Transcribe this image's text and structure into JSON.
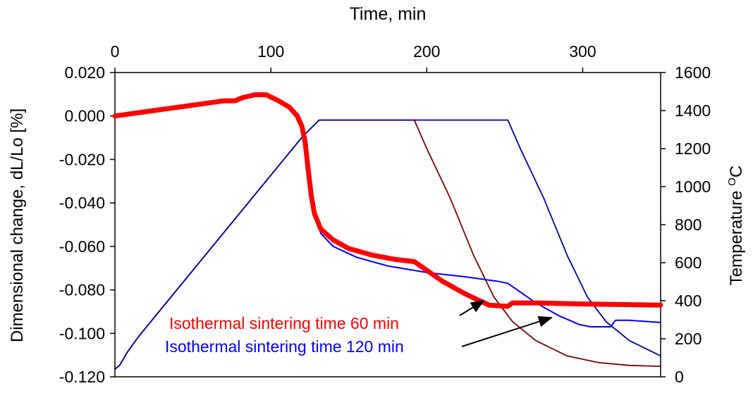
{
  "chart_data": {
    "type": "line",
    "xlabel": "Time, min",
    "ylabel": "Dimensional change, dL/Lo [%]",
    "y2label_main": "Temperature ",
    "y2label_sup": "O",
    "y2label_unit": "C",
    "xlim": [
      0,
      350
    ],
    "ylim": [
      -0.12,
      0.02
    ],
    "y2lim": [
      0,
      1600
    ],
    "x_ticks": [
      "0",
      "100",
      "200",
      "300"
    ],
    "x_tick_values": [
      0,
      100,
      200,
      300
    ],
    "y_ticks": [
      "0.020",
      "0.000",
      "-0.020",
      "-0.040",
      "-0.060",
      "-0.080",
      "-0.100",
      "-0.120"
    ],
    "y_tick_values": [
      0.02,
      0,
      -0.02,
      -0.04,
      -0.06,
      -0.08,
      -0.1,
      -0.12
    ],
    "y2_ticks": [
      "1600",
      "1400",
      "1200",
      "1000",
      "800",
      "600",
      "400",
      "200",
      "0"
    ],
    "y2_tick_values": [
      1600,
      1400,
      1200,
      1000,
      800,
      600,
      400,
      200,
      0
    ],
    "grid": false,
    "annotations": [
      {
        "text": "Isothermal sintering time 60 min",
        "color": "#ff0000"
      },
      {
        "text": "Isothermal sintering time 120 min",
        "color": "#0000ff"
      }
    ],
    "series": [
      {
        "axis": "left",
        "color": "#ff0000",
        "x": [
          0,
          20,
          40,
          60,
          70,
          77,
          82,
          90,
          97,
          105,
          112,
          117,
          120,
          122,
          124,
          126,
          128,
          132,
          140,
          150,
          165,
          180,
          192,
          200,
          210,
          225,
          240,
          250,
          252,
          255,
          270,
          300,
          350
        ],
        "y": [
          0,
          0.002,
          0.004,
          0.006,
          0.007,
          0.007,
          0.0085,
          0.0098,
          0.0098,
          0.007,
          0.004,
          0.0,
          -0.005,
          -0.012,
          -0.025,
          -0.037,
          -0.045,
          -0.052,
          -0.057,
          -0.061,
          -0.064,
          -0.066,
          -0.067,
          -0.071,
          -0.076,
          -0.082,
          -0.087,
          -0.0875,
          -0.0875,
          -0.086,
          -0.086,
          -0.0865,
          -0.087
        ]
      },
      {
        "axis": "left",
        "color": "#0000ff",
        "x": [
          0,
          20,
          40,
          60,
          70,
          77,
          82,
          90,
          97,
          105,
          112,
          117,
          120,
          122,
          124,
          126,
          128,
          132,
          140,
          155,
          175,
          200,
          225,
          245,
          252,
          258,
          270,
          285,
          298,
          305,
          318,
          321,
          330,
          350
        ],
        "y": [
          0,
          0.002,
          0.004,
          0.006,
          0.007,
          0.007,
          0.0085,
          0.0098,
          0.0098,
          0.0075,
          0.0045,
          0.0,
          -0.005,
          -0.012,
          -0.025,
          -0.037,
          -0.046,
          -0.054,
          -0.06,
          -0.065,
          -0.069,
          -0.072,
          -0.074,
          -0.076,
          -0.077,
          -0.08,
          -0.086,
          -0.092,
          -0.096,
          -0.097,
          -0.097,
          -0.094,
          -0.094,
          -0.095
        ]
      },
      {
        "axis": "right",
        "color": "#7b0000",
        "x": [
          0,
          3,
          8,
          15,
          30,
          60,
          90,
          120,
          131,
          192,
          200,
          215,
          230,
          243,
          255,
          270,
          290,
          310,
          330,
          350
        ],
        "y": [
          40,
          60,
          130,
          210,
          360,
          660,
          960,
          1260,
          1350,
          1350,
          1200,
          940,
          640,
          420,
          290,
          190,
          110,
          75,
          60,
          55
        ]
      },
      {
        "axis": "right",
        "color": "#000099",
        "x": [
          0,
          3,
          8,
          15,
          30,
          60,
          90,
          120,
          131,
          252,
          260,
          275,
          290,
          303,
          315,
          330,
          350
        ],
        "y": [
          40,
          60,
          130,
          210,
          360,
          660,
          960,
          1260,
          1350,
          1350,
          1200,
          940,
          640,
          420,
          290,
          190,
          110
        ]
      }
    ]
  }
}
